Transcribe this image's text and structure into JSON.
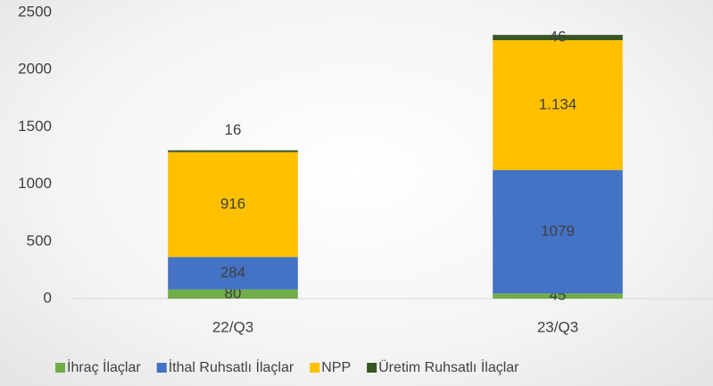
{
  "chart_data": {
    "type": "stacked_bar",
    "categories": [
      "22/Q3",
      "23/Q3"
    ],
    "series": [
      {
        "name": "İhraç İlaçlar",
        "color": "#70ad47",
        "values": [
          80,
          45
        ]
      },
      {
        "name": "İthal Ruhsatlı İlaçlar",
        "color": "#4472c4",
        "values": [
          284,
          1079
        ]
      },
      {
        "name": "NPP",
        "color": "#ffc000",
        "values": [
          916,
          1134
        ],
        "value_labels": [
          "916",
          "1.134"
        ]
      },
      {
        "name": "Üretim Ruhsatlı İlaçlar",
        "color": "#375623",
        "values": [
          16,
          46
        ]
      }
    ],
    "ylim": [
      0,
      2500
    ],
    "yticks": [
      0,
      500,
      1000,
      1500,
      2000,
      2500
    ],
    "grid": false,
    "legend": "bottom"
  }
}
